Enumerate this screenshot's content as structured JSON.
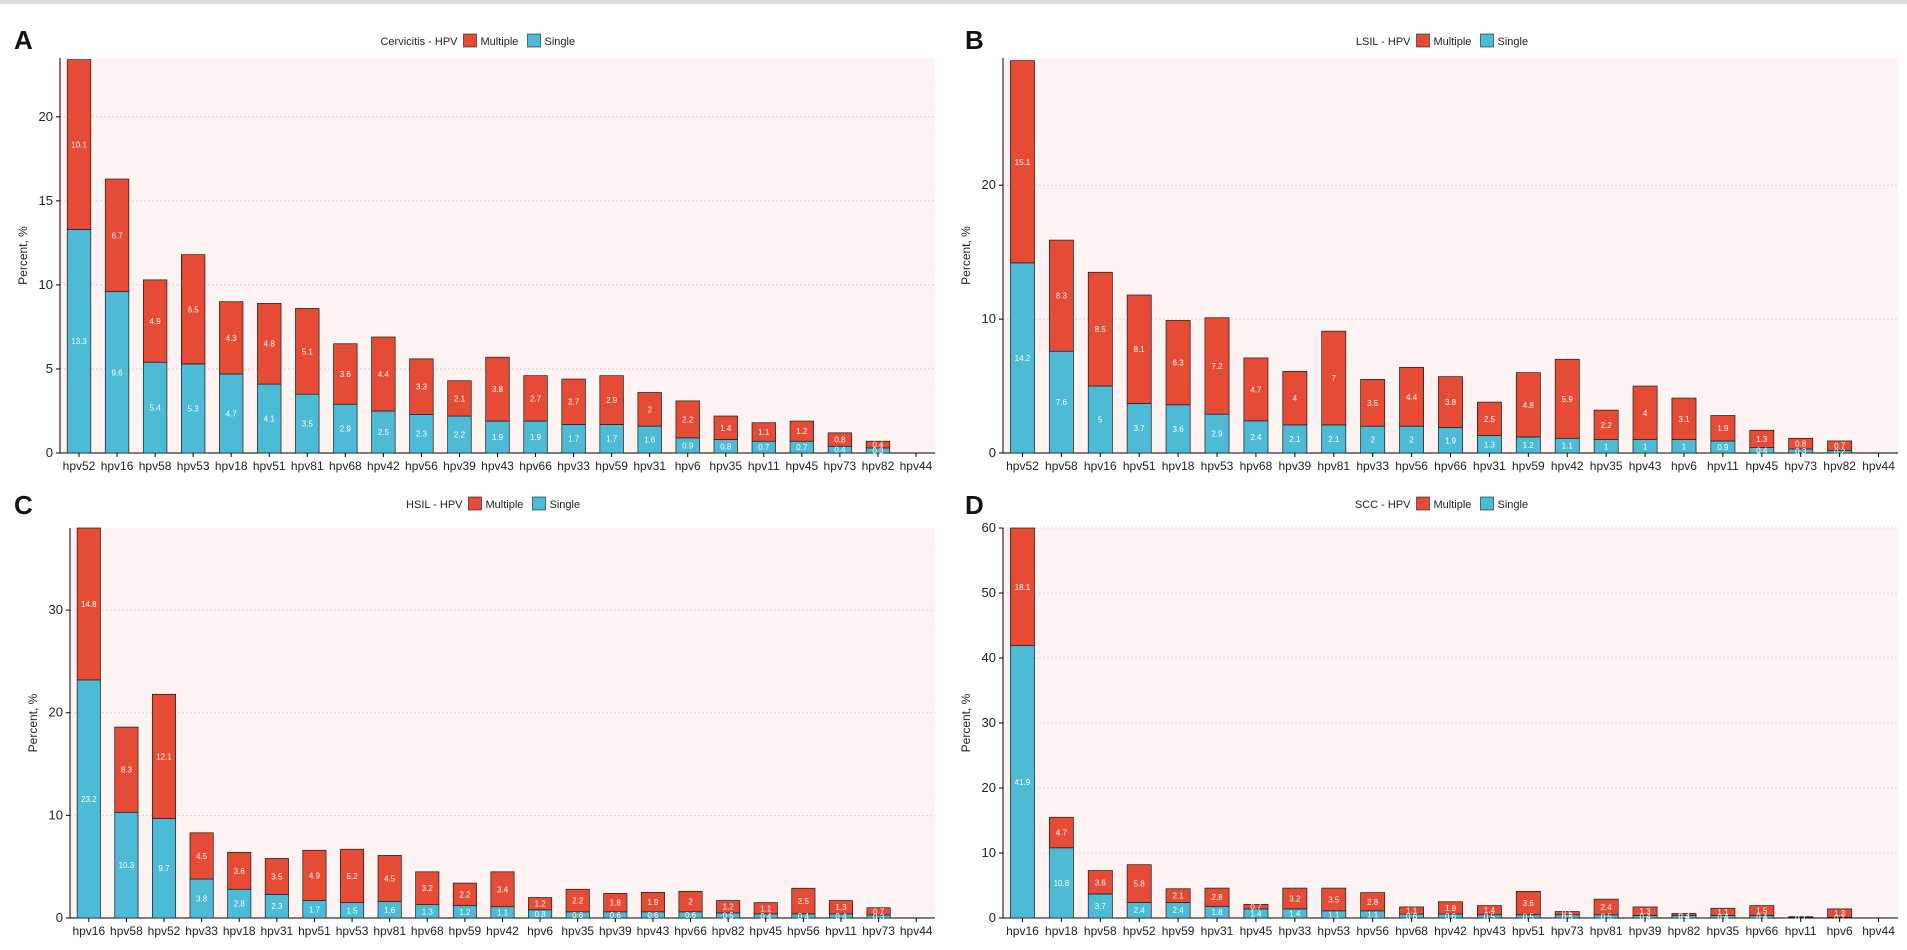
{
  "colors": {
    "multiple": "#e64b35",
    "single": "#4dbbd5",
    "panel_bg": "#fdf3f2",
    "grid": "#cfcfcf",
    "axis": "#000000"
  },
  "chart_data": [
    {
      "panel": "A",
      "type": "bar",
      "stacked": true,
      "title": "Cervicitis - HPV",
      "legend": [
        "Multiple",
        "Single"
      ],
      "legend_position": "top",
      "xlabel": "",
      "ylabel": "Percent, %",
      "ylim": [
        0,
        23.5
      ],
      "yticks": [
        0,
        5,
        10,
        15,
        20
      ],
      "categories": [
        "hpv52",
        "hpv16",
        "hpv58",
        "hpv53",
        "hpv18",
        "hpv51",
        "hpv81",
        "hpv68",
        "hpv42",
        "hpv56",
        "hpv39",
        "hpv43",
        "hpv66",
        "hpv33",
        "hpv59",
        "hpv31",
        "hpv6",
        "hpv35",
        "hpv11",
        "hpv45",
        "hpv73",
        "hpv82",
        "hpv44"
      ],
      "series": [
        {
          "name": "Single",
          "values": [
            13.3,
            9.6,
            5.4,
            5.3,
            4.7,
            4.1,
            3.5,
            2.9,
            2.5,
            2.3,
            2.2,
            1.9,
            1.9,
            1.7,
            1.7,
            1.6,
            0.9,
            0.8,
            0.7,
            0.7,
            0.4,
            0.3,
            0
          ]
        },
        {
          "name": "Multiple",
          "values": [
            10.1,
            6.7,
            4.9,
            6.5,
            4.3,
            4.8,
            5.1,
            3.6,
            4.4,
            3.3,
            2.1,
            3.8,
            2.7,
            2.7,
            2.9,
            2,
            2.2,
            1.4,
            1.1,
            1.2,
            0.8,
            0.4,
            0
          ]
        }
      ],
      "labels": {
        "Single": [
          "13.3",
          "9.6",
          "5.4",
          "5.3",
          "4.7",
          "4.1",
          "3.5",
          "2.9",
          "2.5",
          "2.3",
          "2.2",
          "1.9",
          "1.9",
          "1.7",
          "1.7",
          "1.6",
          "0.9",
          "0.8",
          "0.7",
          "0.7",
          "0.4",
          "0.3",
          ""
        ],
        "Multiple": [
          "10.1",
          "6.7",
          "4.9",
          "6.5",
          "4.3",
          "4.8",
          "5.1",
          "3.6",
          "4.4",
          "3.3",
          "2.1",
          "3.8",
          "2.7",
          "2.7",
          "2.9",
          "2",
          "2.2",
          "1.4",
          "1.1",
          "1.2",
          "0.8",
          "0.4",
          ""
        ]
      }
    },
    {
      "panel": "B",
      "type": "bar",
      "stacked": true,
      "title": "LSIL - HPV",
      "legend": [
        "Multiple",
        "Single"
      ],
      "legend_position": "top",
      "xlabel": "",
      "ylabel": "Percent, %",
      "ylim": [
        0,
        29.5
      ],
      "yticks": [
        0,
        10,
        20
      ],
      "categories": [
        "hpv52",
        "hpv58",
        "hpv16",
        "hpv51",
        "hpv18",
        "hpv53",
        "hpv68",
        "hpv39",
        "hpv81",
        "hpv33",
        "hpv56",
        "hpv66",
        "hpv31",
        "hpv59",
        "hpv42",
        "hpv35",
        "hpv43",
        "hpv6",
        "hpv11",
        "hpv45",
        "hpv73",
        "hpv82",
        "hpv44"
      ],
      "series": [
        {
          "name": "Single",
          "values": [
            14.2,
            7.6,
            5,
            3.7,
            3.6,
            2.9,
            2.4,
            2.1,
            2.1,
            2,
            2,
            1.9,
            1.3,
            1.2,
            1.1,
            1,
            1,
            1,
            0.9,
            0.4,
            0.3,
            0.2,
            0
          ]
        },
        {
          "name": "Multiple",
          "values": [
            15.1,
            8.3,
            8.5,
            8.1,
            6.3,
            7.2,
            4.7,
            4,
            7,
            3.5,
            4.4,
            3.8,
            2.5,
            4.8,
            5.9,
            2.2,
            4,
            3.1,
            1.9,
            1.3,
            0.8,
            0.7,
            0
          ]
        }
      ],
      "labels": {
        "Single": [
          "14.2",
          "7.6",
          "5",
          "3.7",
          "3.6",
          "2.9",
          "2.4",
          "2.1",
          "2.1",
          "2",
          "2",
          "1.9",
          "1.3",
          "1.2",
          "1.1",
          "1",
          "1",
          "1",
          "0.9",
          "0.4",
          "0.3",
          "0.2",
          ""
        ],
        "Multiple": [
          "15.1",
          "8.3",
          "8.5",
          "8.1",
          "6.3",
          "7.2",
          "4.7",
          "4",
          "7",
          "3.5",
          "4.4",
          "3.8",
          "2.5",
          "4.8",
          "5.9",
          "2.2",
          "4",
          "3.1",
          "1.9",
          "1.3",
          "0.8",
          "0.7",
          ""
        ]
      }
    },
    {
      "panel": "C",
      "type": "bar",
      "stacked": true,
      "title": "HSIL - HPV",
      "legend": [
        "Multiple",
        "Single"
      ],
      "legend_position": "top",
      "xlabel": "",
      "ylabel": "Percent, %",
      "ylim": [
        0,
        38
      ],
      "yticks": [
        0,
        10,
        20,
        30
      ],
      "categories": [
        "hpv16",
        "hpv58",
        "hpv52",
        "hpv33",
        "hpv18",
        "hpv31",
        "hpv51",
        "hpv53",
        "hpv81",
        "hpv68",
        "hpv59",
        "hpv42",
        "hpv6",
        "hpv35",
        "hpv39",
        "hpv43",
        "hpv66",
        "hpv82",
        "hpv45",
        "hpv56",
        "hpv11",
        "hpv73",
        "hpv44"
      ],
      "series": [
        {
          "name": "Single",
          "values": [
            23.2,
            10.3,
            9.7,
            3.8,
            2.8,
            2.3,
            1.7,
            1.5,
            1.6,
            1.3,
            1.2,
            1.1,
            0.8,
            0.6,
            0.6,
            0.6,
            0.6,
            0.5,
            0.4,
            0.4,
            0.4,
            0.3,
            0
          ]
        },
        {
          "name": "Multiple",
          "values": [
            14.8,
            8.3,
            12.1,
            4.5,
            3.6,
            3.5,
            4.9,
            5.2,
            4.5,
            3.2,
            2.2,
            3.4,
            1.2,
            2.2,
            1.8,
            1.9,
            2,
            1.2,
            1.1,
            2.5,
            1.3,
            0.7,
            0
          ]
        }
      ],
      "labels": {
        "Single": [
          "23.2",
          "10.3",
          "9.7",
          "3.8",
          "2.8",
          "2.3",
          "1.7",
          "1.5",
          "1.6",
          "1.3",
          "1.2",
          "1.1",
          "0.8",
          "0.6",
          "0.6",
          "0.6",
          "0.6",
          "0.5",
          "0.4",
          "0.4",
          "0.4",
          "0.3",
          ""
        ],
        "Multiple": [
          "14.8",
          "8.3",
          "12.1",
          "4.5",
          "3.6",
          "3.5",
          "4.9",
          "5.2",
          "4.5",
          "3.2",
          "2.2",
          "3.4",
          "1.2",
          "2.2",
          "1.8",
          "1.9",
          "2",
          "1.2",
          "1.1",
          "2.5",
          "1.3",
          "0.7",
          ""
        ]
      }
    },
    {
      "panel": "D",
      "type": "bar",
      "stacked": true,
      "title": "SCC - HPV",
      "legend": [
        "Multiple",
        "Single"
      ],
      "legend_position": "top",
      "xlabel": "",
      "ylabel": "Percent, %",
      "ylim": [
        0,
        60
      ],
      "yticks": [
        0,
        10,
        20,
        30,
        40,
        50,
        60
      ],
      "categories": [
        "hpv16",
        "hpv18",
        "hpv58",
        "hpv52",
        "hpv59",
        "hpv31",
        "hpv45",
        "hpv33",
        "hpv53",
        "hpv56",
        "hpv68",
        "hpv42",
        "hpv43",
        "hpv51",
        "hpv73",
        "hpv81",
        "hpv39",
        "hpv82",
        "hpv35",
        "hpv66",
        "hpv11",
        "hpv6",
        "hpv44"
      ],
      "series": [
        {
          "name": "Single",
          "values": [
            41.9,
            10.8,
            3.7,
            2.4,
            2.4,
            1.8,
            1.4,
            1.4,
            1.1,
            1.1,
            0.6,
            0.6,
            0.5,
            0.5,
            0.5,
            0.5,
            0.4,
            0.4,
            0.4,
            0.4,
            0.1,
            0.1,
            0
          ]
        },
        {
          "name": "Multiple",
          "values": [
            18.1,
            4.7,
            3.6,
            5.8,
            2.1,
            2.8,
            0.7,
            3.2,
            3.5,
            2.8,
            1.1,
            1.9,
            1.4,
            3.6,
            0.5,
            2.4,
            1.3,
            0.3,
            1.1,
            1.5,
            0.1,
            1.3,
            0
          ]
        }
      ],
      "labels": {
        "Single": [
          "41.9",
          "10.8",
          "3.7",
          "2.4",
          "2.4",
          "1.8",
          "1.4",
          "1.4",
          "1.1",
          "1.1",
          "0.6",
          "0.6",
          "0.5",
          "0.5",
          "0.5",
          "0.5",
          "0.4",
          "0.4",
          "0.4",
          "0.4",
          "0.1",
          "0.1",
          ""
        ],
        "Multiple": [
          "18.1",
          "4.7",
          "3.6",
          "5.8",
          "2.1",
          "2.8",
          "0.7",
          "3.2",
          "3.5",
          "2.8",
          "1.1",
          "1.9",
          "1.4",
          "3.6",
          "0.5",
          "2.4",
          "1.3",
          "0.3",
          "1.1",
          "1.5",
          "0.1",
          "1.3",
          ""
        ]
      }
    }
  ]
}
